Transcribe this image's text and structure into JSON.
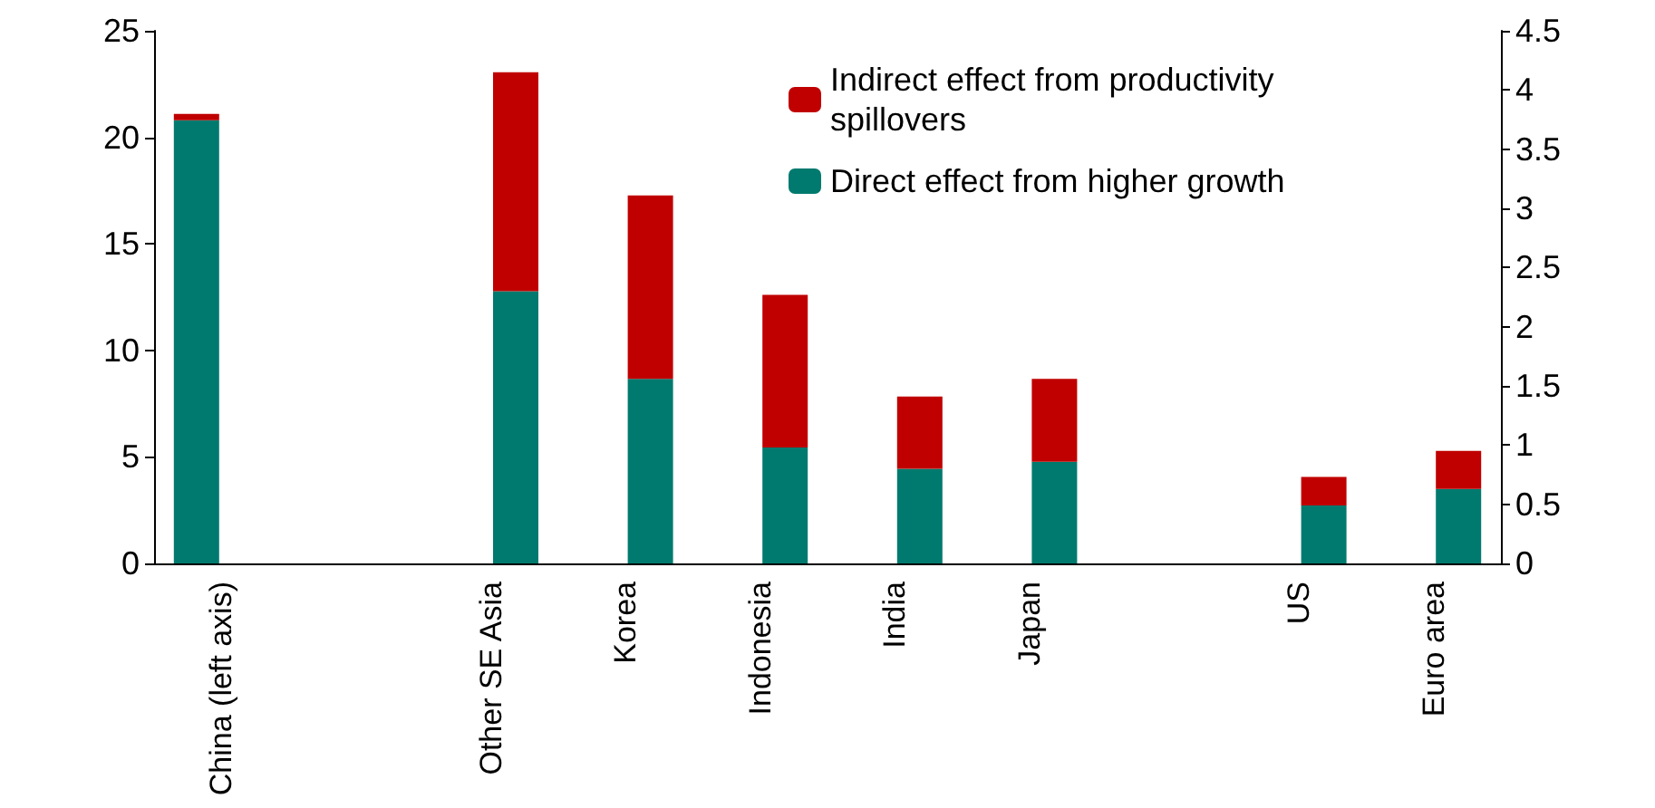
{
  "chart_data": {
    "type": "bar",
    "stacked": true,
    "categories": [
      "China (left axis)",
      null,
      "Other SE Asia",
      "Korea",
      "Indonesia",
      "India",
      "Japan",
      null,
      "US",
      "Euro area"
    ],
    "series": [
      {
        "color": "#007a6e",
        "values": [
          20.8,
          null,
          null,
          null,
          null,
          null,
          null,
          null,
          null,
          null
        ]
      },
      {
        "color": "#c00000",
        "values": [
          0.3,
          null,
          null,
          null,
          null,
          null,
          null,
          null,
          null,
          null
        ]
      },
      {
        "name": "Direct effect from higher growth",
        "color": "#007a6e",
        "axis": "y2",
        "values": [
          null,
          null,
          2.3,
          1.56,
          0.98,
          0.8,
          0.86,
          null,
          0.49,
          0.63
        ]
      },
      {
        "name": "Indirect effect from productivity spillovers",
        "color": "#c00000",
        "axis": "y2",
        "values": [
          null,
          null,
          1.85,
          1.55,
          1.29,
          0.61,
          0.7,
          null,
          0.24,
          0.32
        ]
      }
    ],
    "ylim": [
      0,
      25
    ],
    "yticks": [
      0,
      5,
      10,
      15,
      20,
      25
    ],
    "y2lim": [
      0,
      4.5
    ],
    "y2ticks": [
      0,
      0.5,
      1,
      1.5,
      2,
      2.5,
      3,
      3.5,
      4,
      4.5
    ],
    "grid": false,
    "legend": "top right"
  }
}
